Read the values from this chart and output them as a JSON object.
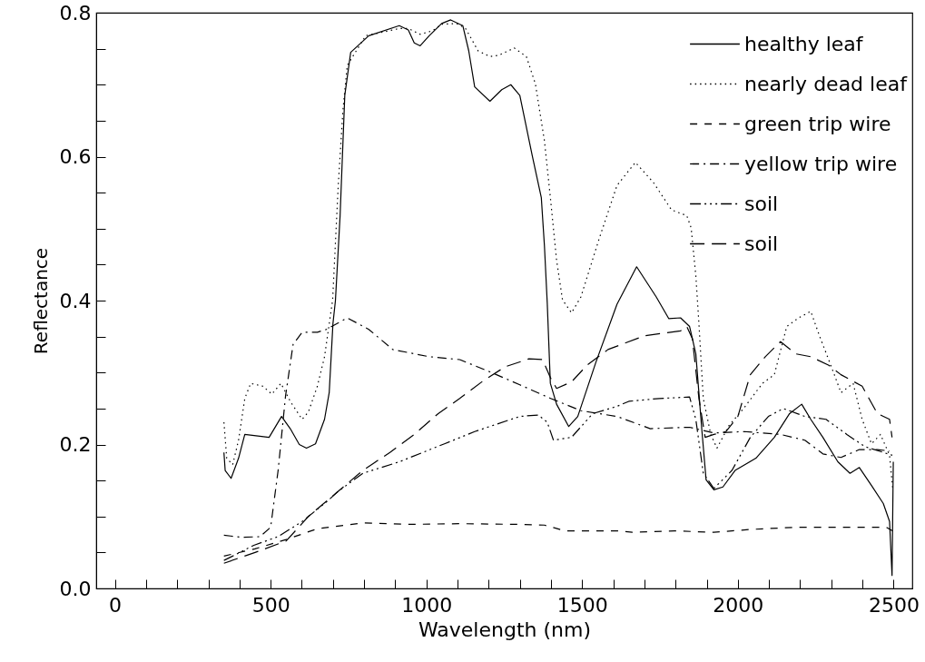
{
  "chart_data": {
    "type": "line",
    "xlabel": "Wavelength (nm)",
    "ylabel": "Reflectance",
    "xlim": [
      -60,
      2560
    ],
    "ylim": [
      0,
      0.8
    ],
    "xticks": [
      0,
      {
        "value": 100,
        "label": null
      },
      {
        "value": 200,
        "label": null
      },
      {
        "value": 300,
        "label": null
      },
      {
        "value": 400,
        "label": null
      },
      500,
      {
        "value": 600,
        "label": null
      },
      {
        "value": 700,
        "label": null
      },
      {
        "value": 800,
        "label": null
      },
      {
        "value": 900,
        "label": null
      },
      1000,
      {
        "value": 1100,
        "label": null
      },
      {
        "value": 1200,
        "label": null
      },
      {
        "value": 1300,
        "label": null
      },
      {
        "value": 1400,
        "label": null
      },
      1500,
      {
        "value": 1600,
        "label": null
      },
      {
        "value": 1700,
        "label": null
      },
      {
        "value": 1800,
        "label": null
      },
      {
        "value": 1900,
        "label": null
      },
      2000,
      {
        "value": 2100,
        "label": null
      },
      {
        "value": 2200,
        "label": null
      },
      {
        "value": 2300,
        "label": null
      },
      {
        "value": 2400,
        "label": null
      },
      2500
    ],
    "yticks": [
      {
        "value": 0,
        "label": "0.0"
      },
      {
        "value": 0.05,
        "label": null
      },
      {
        "value": 0.1,
        "label": null
      },
      {
        "value": 0.15,
        "label": null
      },
      0.2,
      {
        "value": 0.25,
        "label": null
      },
      {
        "value": 0.3,
        "label": null
      },
      {
        "value": 0.35,
        "label": null
      },
      0.4,
      {
        "value": 0.45,
        "label": null
      },
      {
        "value": 0.5,
        "label": null
      },
      {
        "value": 0.55,
        "label": null
      },
      0.6,
      {
        "value": 0.65,
        "label": null
      },
      {
        "value": 0.7,
        "label": null
      },
      {
        "value": 0.75,
        "label": null
      },
      0.8
    ],
    "legend": "top right",
    "series": [
      {
        "name": "healthy leaf",
        "color": "#000000",
        "line_style": "solid",
        "x": [
          350,
          354,
          373,
          397,
          417,
          495,
          535,
          563,
          592,
          615,
          644,
          673,
          688,
          700,
          708,
          723,
          738,
          757,
          815,
          913,
          942,
          961,
          980,
          1009,
          1049,
          1078,
          1117,
          1136,
          1155,
          1204,
          1242,
          1271,
          1300,
          1340,
          1369,
          1379,
          1388,
          1398,
          1418,
          1457,
          1486,
          1544,
          1612,
          1675,
          1738,
          1778,
          1816,
          1845,
          1865,
          1884,
          1898,
          1923,
          1952,
          1991,
          2058,
          2117,
          2166,
          2205,
          2234,
          2273,
          2321,
          2360,
          2390,
          2429,
          2467,
          2487,
          2495,
          2499
        ],
        "values": [
          0.189,
          0.164,
          0.153,
          0.181,
          0.214,
          0.21,
          0.239,
          0.222,
          0.2,
          0.195,
          0.201,
          0.235,
          0.272,
          0.368,
          0.4,
          0.518,
          0.685,
          0.745,
          0.768,
          0.782,
          0.776,
          0.758,
          0.754,
          0.768,
          0.785,
          0.79,
          0.782,
          0.747,
          0.697,
          0.677,
          0.693,
          0.7,
          0.685,
          0.601,
          0.543,
          0.476,
          0.397,
          0.285,
          0.256,
          0.225,
          0.239,
          0.314,
          0.395,
          0.447,
          0.405,
          0.375,
          0.376,
          0.364,
          0.326,
          0.222,
          0.151,
          0.137,
          0.141,
          0.164,
          0.181,
          0.21,
          0.243,
          0.256,
          0.235,
          0.21,
          0.176,
          0.16,
          0.168,
          0.143,
          0.118,
          0.093,
          0.018,
          0.176
        ]
      },
      {
        "name": "nearly dead leaf",
        "color": "#000000",
        "line_style": "dotted",
        "x": [
          350,
          359,
          378,
          397,
          417,
          436,
          475,
          504,
          533,
          563,
          601,
          621,
          650,
          673,
          699,
          717,
          732,
          746,
          805,
          913,
          942,
          980,
          1020,
          1049,
          1097,
          1126,
          1166,
          1204,
          1233,
          1282,
          1321,
          1350,
          1379,
          1399,
          1418,
          1437,
          1466,
          1496,
          1554,
          1612,
          1671,
          1729,
          1787,
          1836,
          1850,
          1865,
          1875,
          1889,
          1913,
          1933,
          1971,
          2020,
          2079,
          2117,
          2157,
          2195,
          2234,
          2262,
          2302,
          2331,
          2370,
          2399,
          2429,
          2458,
          2487,
          2497
        ],
        "values": [
          0.231,
          0.181,
          0.172,
          0.206,
          0.264,
          0.285,
          0.281,
          0.27,
          0.285,
          0.26,
          0.235,
          0.245,
          0.281,
          0.322,
          0.401,
          0.56,
          0.664,
          0.727,
          0.768,
          0.778,
          0.778,
          0.77,
          0.775,
          0.784,
          0.785,
          0.778,
          0.747,
          0.739,
          0.741,
          0.751,
          0.739,
          0.701,
          0.622,
          0.539,
          0.456,
          0.401,
          0.383,
          0.405,
          0.485,
          0.56,
          0.592,
          0.564,
          0.526,
          0.518,
          0.501,
          0.435,
          0.368,
          0.264,
          0.214,
          0.195,
          0.226,
          0.251,
          0.285,
          0.297,
          0.364,
          0.376,
          0.385,
          0.351,
          0.306,
          0.272,
          0.285,
          0.235,
          0.201,
          0.214,
          0.185,
          0.139
        ]
      },
      {
        "name": "green trip wire",
        "color": "#000000",
        "line_style": "dashed",
        "x": [
          350,
          450,
          550,
          650,
          796,
          942,
          1107,
          1300,
          1379,
          1446,
          1612,
          1661,
          1796,
          1923,
          2040,
          2186,
          2331,
          2477,
          2496
        ],
        "values": [
          0.045,
          0.055,
          0.068,
          0.083,
          0.091,
          0.089,
          0.09,
          0.089,
          0.088,
          0.08,
          0.08,
          0.078,
          0.08,
          0.078,
          0.082,
          0.085,
          0.085,
          0.085,
          0.08
        ]
      },
      {
        "name": "yellow trip wire",
        "color": "#000000",
        "line_style": "dashdot",
        "x": [
          350,
          407,
          466,
          500,
          524,
          548,
          572,
          601,
          650,
          679,
          746,
          815,
          892,
          1009,
          1107,
          1204,
          1300,
          1399,
          1496,
          1554,
          1612,
          1719,
          1845,
          1923,
          2020,
          2137,
          2215,
          2273,
          2331,
          2390,
          2448,
          2487
        ],
        "values": [
          0.074,
          0.071,
          0.072,
          0.085,
          0.164,
          0.268,
          0.339,
          0.356,
          0.356,
          0.36,
          0.376,
          0.36,
          0.332,
          0.322,
          0.318,
          0.301,
          0.283,
          0.264,
          0.247,
          0.243,
          0.239,
          0.222,
          0.224,
          0.216,
          0.218,
          0.214,
          0.206,
          0.187,
          0.182,
          0.193,
          0.193,
          0.191
        ]
      },
      {
        "name": "soil",
        "color": "#000000",
        "line_style": "dashdotdot",
        "x": [
          350,
          378,
          446,
          524,
          601,
          621,
          679,
          717,
          796,
          913,
          1058,
          1155,
          1300,
          1359,
          1388,
          1408,
          1466,
          1534,
          1612,
          1650,
          1748,
          1845,
          1865,
          1889,
          1923,
          1981,
          2040,
          2098,
          2146,
          2215,
          2283,
          2350,
          2408,
          2467,
          2496
        ],
        "values": [
          0.039,
          0.045,
          0.06,
          0.072,
          0.093,
          0.1,
          0.12,
          0.135,
          0.16,
          0.176,
          0.201,
          0.218,
          0.239,
          0.241,
          0.231,
          0.206,
          0.21,
          0.243,
          0.253,
          0.26,
          0.264,
          0.266,
          0.235,
          0.16,
          0.139,
          0.164,
          0.21,
          0.239,
          0.25,
          0.239,
          0.235,
          0.214,
          0.197,
          0.189,
          0.185
        ]
      },
      {
        "name": "soil",
        "color": "#000000",
        "line_style": "longdash",
        "x": [
          350,
          450,
          550,
          621,
          717,
          796,
          883,
          961,
          1038,
          1107,
          1184,
          1253,
          1329,
          1373,
          1398,
          1418,
          1466,
          1515,
          1583,
          1700,
          1816,
          1836,
          1854,
          1875,
          1895,
          1923,
          1962,
          2000,
          2040,
          2088,
          2137,
          2186,
          2234,
          2292,
          2331,
          2399,
          2448,
          2487,
          2495
        ],
        "values": [
          0.035,
          0.05,
          0.066,
          0.1,
          0.135,
          0.164,
          0.189,
          0.214,
          0.243,
          0.264,
          0.289,
          0.308,
          0.319,
          0.318,
          0.293,
          0.278,
          0.287,
          0.31,
          0.332,
          0.351,
          0.358,
          0.364,
          0.347,
          0.264,
          0.21,
          0.214,
          0.218,
          0.239,
          0.297,
          0.322,
          0.343,
          0.326,
          0.322,
          0.31,
          0.297,
          0.281,
          0.243,
          0.235,
          0.21
        ]
      }
    ]
  }
}
